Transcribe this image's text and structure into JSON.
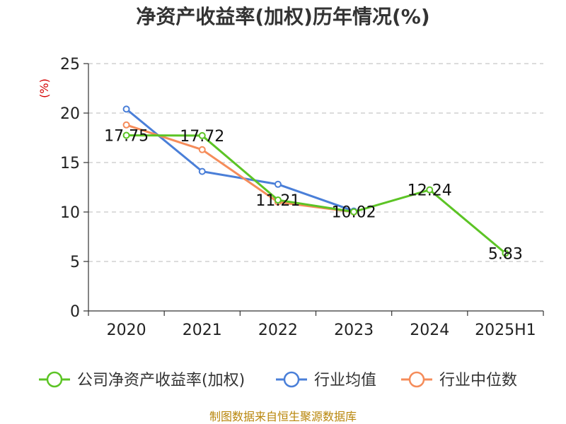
{
  "chart_data": {
    "type": "line",
    "title": "净资产收益率(加权)历年情况(%)",
    "unit": "(%)",
    "categories": [
      "2020",
      "2021",
      "2022",
      "2023",
      "2024",
      "2025H1"
    ],
    "ylim": [
      0,
      25
    ],
    "yticks": [
      "0",
      "5",
      "10",
      "15",
      "20",
      "25"
    ],
    "grid": true,
    "legend_position": "bottom",
    "series": [
      {
        "name": "公司净资产收益率(加权)",
        "color": "#5cc425",
        "values": [
          17.75,
          17.72,
          11.21,
          10.02,
          12.24,
          5.83
        ],
        "labels": [
          "17.75",
          "17.72",
          "11.21",
          "10.02",
          "12.24",
          "5.83"
        ],
        "show_labels": true
      },
      {
        "name": "行业均值",
        "color": "#4a7fd8",
        "values": [
          20.4,
          14.1,
          12.8,
          10.1,
          null,
          null
        ],
        "show_labels": false
      },
      {
        "name": "行业中位数",
        "color": "#f58c5a",
        "values": [
          18.8,
          16.3,
          11.0,
          10.0,
          null,
          null
        ],
        "show_labels": false
      }
    ]
  },
  "source": "制图数据来自恒生聚源数据库"
}
